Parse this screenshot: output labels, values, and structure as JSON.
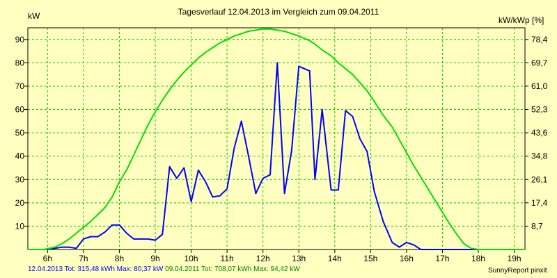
{
  "chart_data": {
    "type": "line",
    "title": "Tagesverlauf 12.04.2013 im Vergleich zum 09.04.2011",
    "ylabel_left": "kW",
    "ylabel_right": "kW/kWp [%]",
    "x_ticks": [
      "6h",
      "7h",
      "8h",
      "9h",
      "10h",
      "11h",
      "12h",
      "13h",
      "14h",
      "15h",
      "16h",
      "17h",
      "18h",
      "19h"
    ],
    "x_tick_hours": [
      6,
      7,
      8,
      9,
      10,
      11,
      12,
      13,
      14,
      15,
      16,
      17,
      18,
      19
    ],
    "xlim": [
      5.45,
      19.3
    ],
    "ylim": [
      0,
      95
    ],
    "y_ticks": [
      10,
      20,
      30,
      40,
      50,
      60,
      70,
      80,
      90
    ],
    "y_right_ticks": [
      "8,7",
      "17,4",
      "26,1",
      "34,8",
      "43,6",
      "52,3",
      "61,0",
      "69,7",
      "78,4"
    ],
    "grid": true,
    "series": [
      {
        "name": "12.04.2013",
        "color": "#0000ff",
        "x": [
          5.45,
          5.9,
          6.2,
          6.4,
          6.6,
          6.8,
          7.0,
          7.2,
          7.4,
          7.6,
          7.8,
          8.0,
          8.2,
          8.4,
          8.6,
          8.8,
          9.0,
          9.2,
          9.4,
          9.6,
          9.8,
          10.0,
          10.2,
          10.4,
          10.6,
          10.8,
          11.0,
          11.2,
          11.4,
          11.6,
          11.8,
          12.0,
          12.2,
          12.4,
          12.6,
          12.8,
          13.0,
          13.3,
          13.45,
          13.65,
          13.9,
          14.1,
          14.3,
          14.5,
          14.7,
          14.9,
          15.1,
          15.35,
          15.6,
          15.8,
          16.0,
          16.2,
          16.4,
          16.6,
          16.8,
          17.0,
          17.2,
          17.4,
          17.6,
          17.8,
          18.0,
          18.2,
          18.4,
          18.7,
          19.3
        ],
        "y": [
          0,
          0,
          0.5,
          1,
          1,
          0.5,
          4.5,
          5.5,
          5.5,
          7.5,
          10.5,
          10.5,
          7,
          4.5,
          4.5,
          4.5,
          4,
          6.5,
          35.5,
          30.5,
          35,
          20.5,
          34,
          29,
          22.5,
          23,
          26,
          43.5,
          55,
          40,
          24,
          30.5,
          32,
          80,
          24,
          42.5,
          78.5,
          76.5,
          30,
          60,
          25.5,
          25.5,
          59.5,
          57,
          47.5,
          42,
          25,
          12,
          3,
          1,
          3,
          2,
          0,
          0,
          0,
          0,
          0,
          0,
          0,
          0,
          0,
          0,
          0,
          0,
          0
        ]
      },
      {
        "name": "09.04.2011",
        "color": "#00e000",
        "x": [
          5.45,
          5.9,
          6.2,
          6.4,
          6.6,
          6.8,
          7.0,
          7.2,
          7.4,
          7.6,
          7.8,
          8.0,
          8.2,
          8.4,
          8.6,
          8.8,
          9.0,
          9.2,
          9.4,
          9.6,
          9.8,
          10.0,
          10.2,
          10.4,
          10.6,
          10.8,
          11.0,
          11.2,
          11.4,
          11.6,
          11.8,
          12.0,
          12.2,
          12.4,
          12.6,
          12.8,
          13.0,
          13.3,
          13.45,
          13.65,
          13.9,
          14.1,
          14.3,
          14.5,
          14.7,
          14.9,
          15.1,
          15.35,
          15.6,
          15.8,
          16.0,
          16.2,
          16.4,
          16.6,
          16.8,
          17.0,
          17.2,
          17.4,
          17.6,
          17.8,
          18.0,
          18.2,
          18.4,
          18.7,
          19.3
        ],
        "y": [
          0,
          0,
          1,
          2.5,
          4.5,
          7,
          9.5,
          12,
          15,
          18,
          22.5,
          29,
          34,
          40.5,
          47,
          53.5,
          59,
          64,
          68.5,
          72.5,
          76,
          79,
          82,
          84.5,
          86.5,
          88.5,
          90,
          91.5,
          92.5,
          93.5,
          94,
          94.5,
          94.5,
          94,
          93.5,
          92.5,
          91.5,
          89.5,
          88,
          85.5,
          83,
          80,
          77.5,
          75,
          71.5,
          68,
          63.5,
          57.5,
          52.5,
          47,
          41.5,
          36,
          31,
          26,
          21,
          16,
          11,
          6.5,
          2.5,
          0.5,
          0,
          0,
          0,
          0,
          0
        ]
      }
    ]
  },
  "footer": {
    "series1_text": "12.04.2013 Tot: 315,48 kWh Max: 80,37 kW",
    "series2_text": "09.04.2011 Tot: 708,07 kWh Max: 94,42 kW"
  },
  "credit": "SunnyReport pinxit"
}
